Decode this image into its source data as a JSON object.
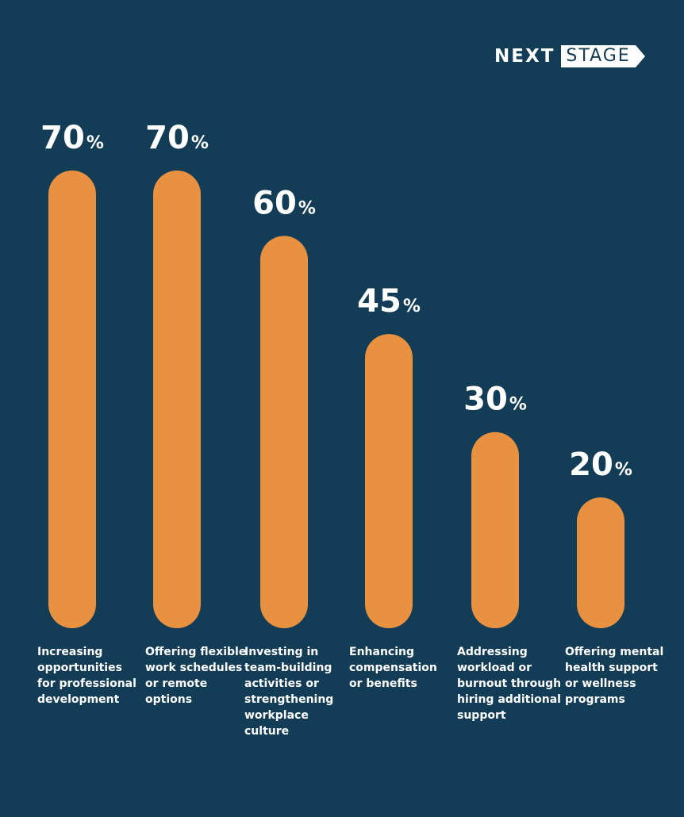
{
  "logo": {
    "part1": "NEXT",
    "part2": "STAGE"
  },
  "colors": {
    "background": "#133c57",
    "bar": "#e89140",
    "text": "#ffffff"
  },
  "chart_data": {
    "type": "bar",
    "categories": [
      "Increasing opportunities for professional development",
      "Offering flexible work schedules or remote options",
      "Investing in team-building activities or strengthening workplace culture",
      "Enhancing compensation or benefits",
      "Addressing workload or burnout through hiring additional support",
      "Offering mental health support or wellness programs"
    ],
    "values": [
      70,
      70,
      60,
      45,
      30,
      20
    ],
    "value_labels": [
      "70",
      "70",
      "60",
      "45",
      "30",
      "20"
    ],
    "value_suffix": "%",
    "grid": false,
    "legend": "none"
  }
}
